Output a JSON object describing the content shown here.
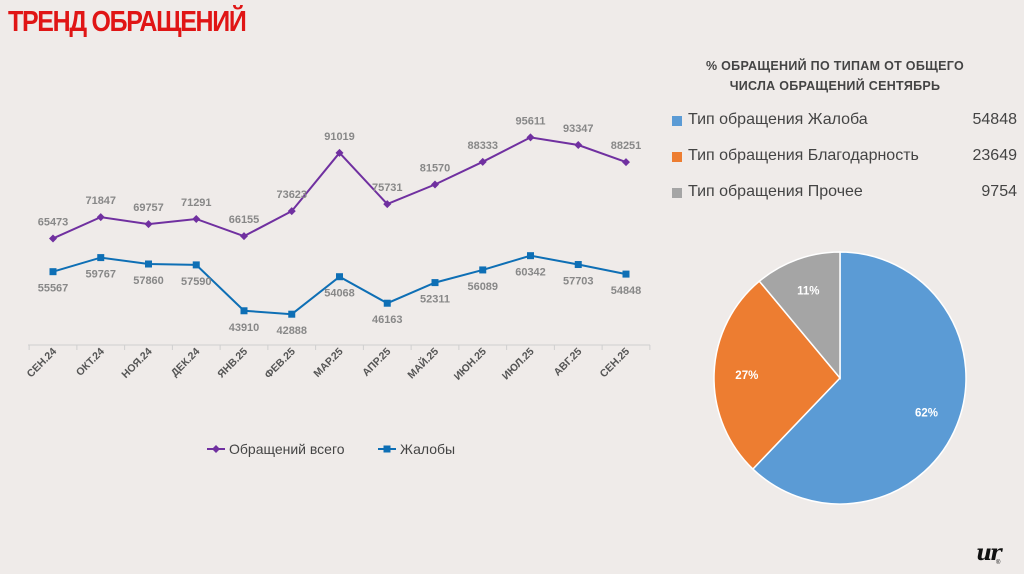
{
  "page": {
    "title": "ТРЕНД ОБРАЩЕНИЙ"
  },
  "chart_data": [
    {
      "type": "line",
      "categories": [
        "СЕН.24",
        "ОКТ.24",
        "НОЯ.24",
        "ДЕК.24",
        "ЯНВ.25",
        "ФЕВ.25",
        "МАР.25",
        "АПР.25",
        "МАЙ.25",
        "ИЮН.25",
        "ИЮЛ.25",
        "АВГ.25",
        "СЕН.25"
      ],
      "series": [
        {
          "name": "Обращений всего",
          "color": "#7030a0",
          "marker": "diamond",
          "values": [
            65473,
            71847,
            69757,
            71291,
            66155,
            73623,
            91019,
            75731,
            81570,
            88333,
            95611,
            93347,
            88251
          ]
        },
        {
          "name": "Жалобы",
          "color": "#0e6fb5",
          "marker": "square",
          "values": [
            55567,
            59767,
            57860,
            57590,
            43910,
            42888,
            54068,
            46163,
            52311,
            56089,
            60342,
            57703,
            54848
          ]
        }
      ],
      "grid": false,
      "legend": "bottom"
    },
    {
      "type": "pie",
      "title": "% ОБРАЩЕНИЙ ПО ТИПАМ ОТ ОБЩЕГО ЧИСЛА ОБРАЩЕНИЙ СЕНТЯБРЬ",
      "title_lines": [
        "% ОБРАЩЕНИЙ ПО ТИПАМ ОТ ОБЩЕГО",
        "ЧИСЛА ОБРАЩЕНИЙ СЕНТЯБРЬ"
      ],
      "slices": [
        {
          "label": "Тип обращения Жалоба",
          "value": 54848,
          "percent": "62%",
          "color": "#5b9bd5"
        },
        {
          "label": "Тип обращения Благодарность",
          "value": 23649,
          "percent": "27%",
          "color": "#ed7d31"
        },
        {
          "label": "Тип обращения Прочее",
          "value": 9754,
          "percent": "11%",
          "color": "#a5a5a5"
        }
      ]
    }
  ],
  "logo": {
    "text": "ur",
    "mark": "®"
  }
}
